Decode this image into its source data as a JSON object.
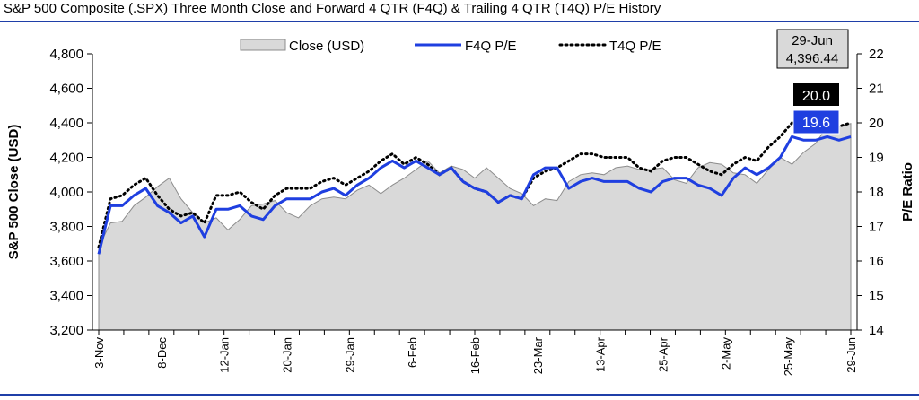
{
  "title": "S&P 500 Composite (.SPX) Three Month Close and Forward 4 QTR (F4Q) & Trailing 4 QTR (T4Q) P/E History",
  "colors": {
    "close_fill": "#d9d9d9",
    "close_stroke": "#8c8c8c",
    "f4q": "#1f3fe0",
    "t4q": "#000000",
    "rule": "#1f3fa8",
    "f4q_badge": "#1f3fe0",
    "t4q_badge": "#000000"
  },
  "legend": {
    "close": "Close (USD)",
    "f4q": "F4Q P/E",
    "t4q": "T4Q P/E"
  },
  "annotation": {
    "date": "29-Jun",
    "close": "4,396.44",
    "t4q_value": "20.0",
    "f4q_value": "19.6"
  },
  "chart_data": {
    "type": "area",
    "title": "S&P 500 Composite (.SPX) Three Month Close and Forward 4 QTR (F4Q) & Trailing 4 QTR (T4Q) P/E History",
    "ylabel_left": "S&P 500 Close (USD)",
    "ylabel_right": "P/E Ratio",
    "ylim_left": [
      3200,
      4800
    ],
    "ylim_right": [
      14,
      22
    ],
    "yticks_left": [
      "3,200",
      "3,400",
      "3,600",
      "3,800",
      "4,000",
      "4,200",
      "4,400",
      "4,600",
      "4,800"
    ],
    "yticks_right": [
      "14",
      "15",
      "16",
      "17",
      "18",
      "19",
      "20",
      "21",
      "22"
    ],
    "xticks": [
      "3-Nov",
      "8-Dec",
      "12-Jan",
      "20-Jan",
      "29-Jan",
      "6-Feb",
      "16-Feb",
      "23-Mar",
      "13-Apr",
      "25-Apr",
      "2-May",
      "25-May",
      "29-Jun"
    ],
    "grid": false,
    "legend_position": "top",
    "series": [
      {
        "name": "Close (USD)",
        "axis": "left",
        "values": [
          3680,
          3820,
          3830,
          3920,
          3970,
          4030,
          4080,
          3960,
          3880,
          3820,
          3850,
          3780,
          3840,
          3920,
          3930,
          3950,
          3880,
          3850,
          3920,
          3960,
          3970,
          3960,
          4010,
          4040,
          3990,
          4040,
          4080,
          4130,
          4180,
          4110,
          4150,
          4130,
          4080,
          4140,
          4080,
          4020,
          3990,
          3920,
          3960,
          3950,
          4060,
          4100,
          4110,
          4100,
          4140,
          4150,
          4130,
          4130,
          4140,
          4070,
          4050,
          4140,
          4170,
          4160,
          4110,
          4100,
          4050,
          4130,
          4200,
          4160,
          4230,
          4280,
          4380,
          4380,
          4396
        ]
      },
      {
        "name": "F4Q P/E",
        "axis": "right",
        "values": [
          16.2,
          17.6,
          17.6,
          17.9,
          18.1,
          17.6,
          17.4,
          17.1,
          17.3,
          16.7,
          17.5,
          17.5,
          17.6,
          17.3,
          17.2,
          17.6,
          17.8,
          17.8,
          17.8,
          18.0,
          18.1,
          17.9,
          18.2,
          18.4,
          18.7,
          18.9,
          18.7,
          18.9,
          18.7,
          18.5,
          18.7,
          18.3,
          18.1,
          18.0,
          17.7,
          17.9,
          17.8,
          18.5,
          18.7,
          18.7,
          18.1,
          18.3,
          18.4,
          18.3,
          18.3,
          18.3,
          18.1,
          18.0,
          18.3,
          18.4,
          18.4,
          18.2,
          18.1,
          17.9,
          18.4,
          18.7,
          18.5,
          18.7,
          19.0,
          19.6,
          19.5,
          19.5,
          19.6,
          19.5,
          19.6
        ]
      },
      {
        "name": "T4Q P/E",
        "axis": "right",
        "values": [
          16.4,
          17.8,
          17.9,
          18.2,
          18.4,
          17.9,
          17.5,
          17.3,
          17.4,
          17.1,
          17.9,
          17.9,
          18.0,
          17.7,
          17.5,
          17.9,
          18.1,
          18.1,
          18.1,
          18.3,
          18.4,
          18.2,
          18.4,
          18.6,
          18.9,
          19.1,
          18.8,
          19.0,
          18.8,
          18.5,
          18.7,
          18.3,
          18.1,
          18.0,
          17.7,
          17.9,
          17.8,
          18.4,
          18.6,
          18.7,
          18.9,
          19.1,
          19.1,
          19.0,
          19.0,
          19.0,
          18.7,
          18.6,
          18.9,
          19.0,
          19.0,
          18.8,
          18.6,
          18.5,
          18.8,
          19.0,
          18.9,
          19.3,
          19.6,
          20.0,
          19.8,
          19.9,
          20.0,
          19.9,
          20.0
        ]
      }
    ]
  }
}
